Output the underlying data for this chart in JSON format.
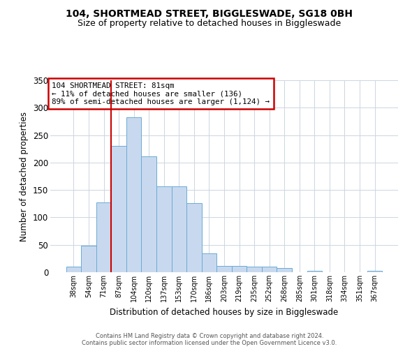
{
  "title": "104, SHORTMEAD STREET, BIGGLESWADE, SG18 0BH",
  "subtitle": "Size of property relative to detached houses in Biggleswade",
  "xlabel": "Distribution of detached houses by size in Biggleswade",
  "ylabel": "Number of detached properties",
  "bar_labels": [
    "38sqm",
    "54sqm",
    "71sqm",
    "87sqm",
    "104sqm",
    "120sqm",
    "137sqm",
    "153sqm",
    "170sqm",
    "186sqm",
    "203sqm",
    "219sqm",
    "235sqm",
    "252sqm",
    "268sqm",
    "285sqm",
    "301sqm",
    "318sqm",
    "334sqm",
    "351sqm",
    "367sqm"
  ],
  "bar_heights": [
    10,
    48,
    127,
    231,
    283,
    211,
    157,
    157,
    126,
    34,
    12,
    12,
    10,
    10,
    8,
    0,
    2,
    0,
    0,
    0,
    2
  ],
  "bar_color": "#c8d9ef",
  "bar_edge_color": "#6aaad4",
  "vline_position": 2.5,
  "vline_color": "#cc0000",
  "annotation_title": "104 SHORTMEAD STREET: 81sqm",
  "annotation_line1": "← 11% of detached houses are smaller (136)",
  "annotation_line2": "89% of semi-detached houses are larger (1,124) →",
  "annotation_box_edge": "#cc0000",
  "ylim": [
    0,
    350
  ],
  "yticks": [
    0,
    50,
    100,
    150,
    200,
    250,
    300,
    350
  ],
  "footer1": "Contains HM Land Registry data © Crown copyright and database right 2024.",
  "footer2": "Contains public sector information licensed under the Open Government Licence v3.0.",
  "background_color": "#ffffff",
  "grid_color": "#ccd5e0",
  "title_fontsize": 10,
  "subtitle_fontsize": 9
}
